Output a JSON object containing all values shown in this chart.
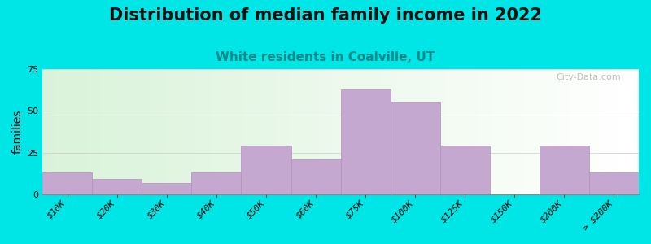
{
  "title": "Distribution of median family income in 2022",
  "subtitle": "White residents in Coalville, UT",
  "ylabel": "families",
  "bar_labels": [
    "$10K",
    "$20K",
    "$30K",
    "$40K",
    "$50K",
    "$60K",
    "$75K",
    "$100K",
    "$125K",
    "$150K",
    "$200K",
    "> $200K"
  ],
  "bar_values": [
    13,
    9,
    7,
    13,
    29,
    21,
    63,
    55,
    29,
    0,
    29,
    13
  ],
  "bar_color": "#c4a8d0",
  "bar_edge_color": "#b090bc",
  "background_outer": "#00e5e5",
  "ylim": [
    0,
    75
  ],
  "yticks": [
    0,
    25,
    50,
    75
  ],
  "title_fontsize": 15,
  "subtitle_fontsize": 11,
  "ylabel_fontsize": 10,
  "tick_fontsize": 8,
  "watermark": "City-Data.com"
}
